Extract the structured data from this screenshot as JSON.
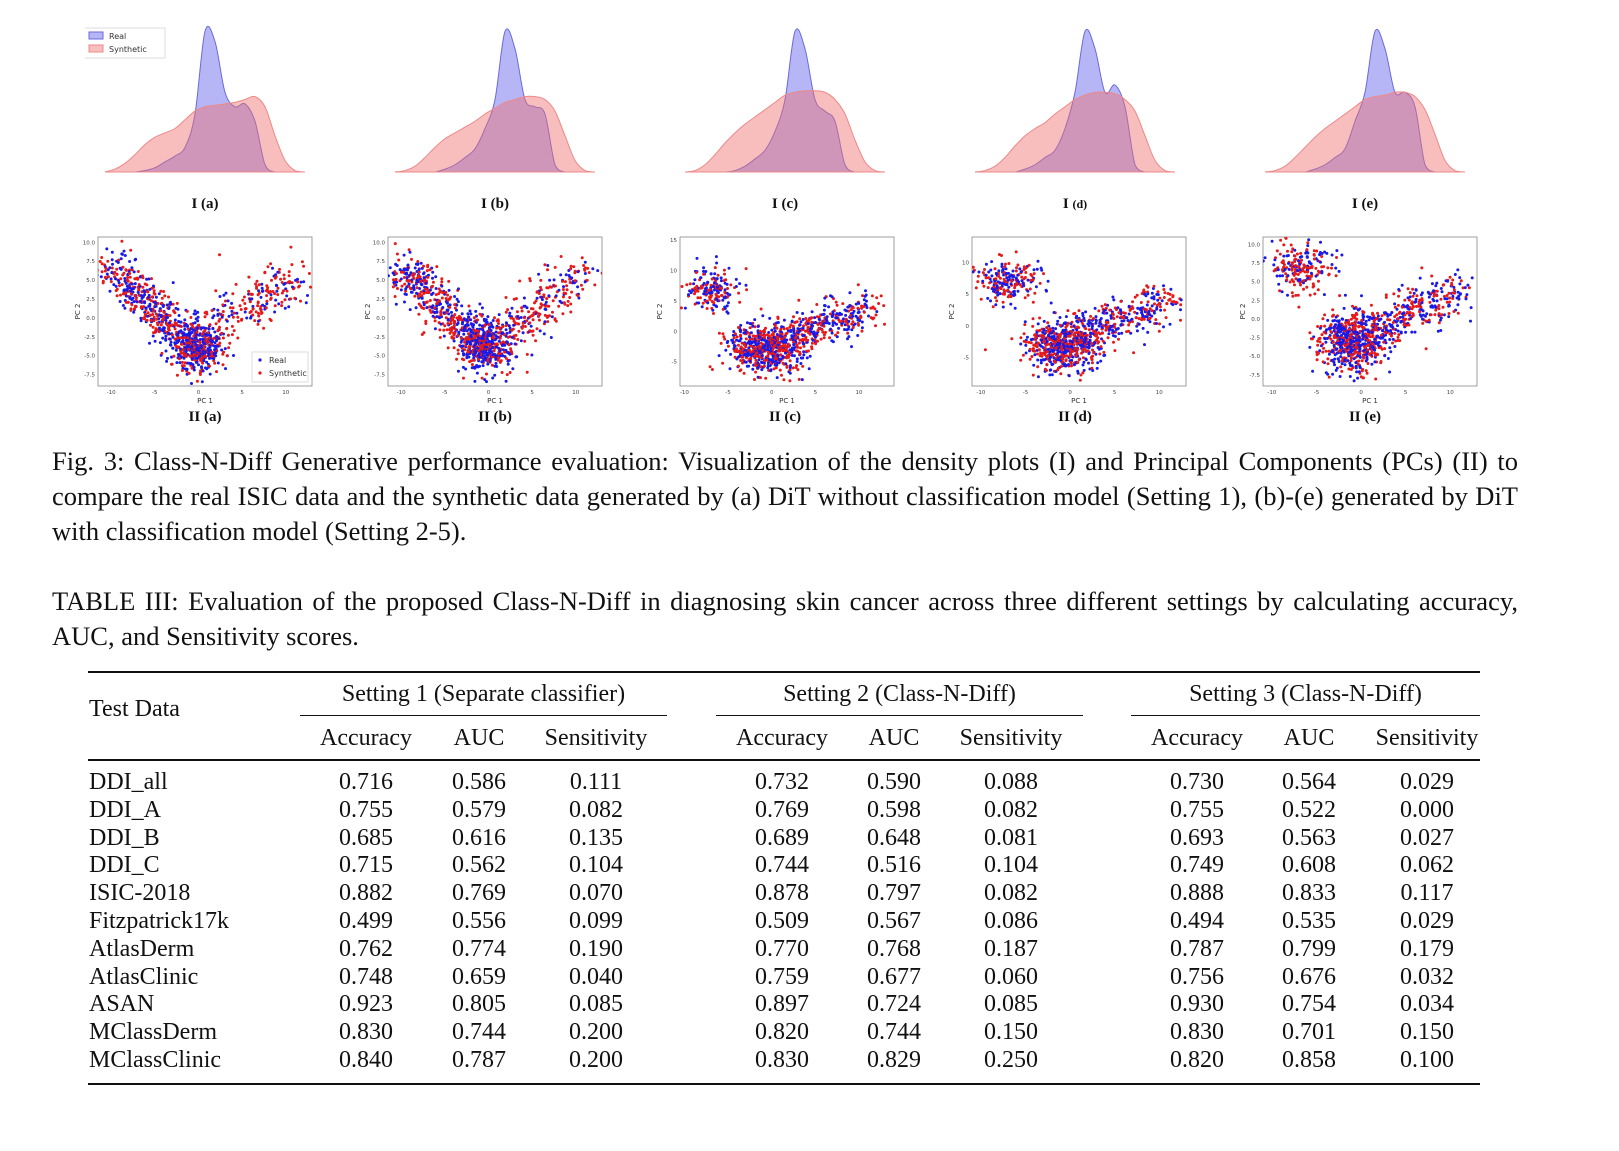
{
  "chart_data": [
    {
      "type": "area",
      "group": "I",
      "legend": [
        "Real",
        "Synthetic"
      ],
      "legend_placement": "top-left",
      "colors": {
        "Real": "#8c8cf0",
        "Synthetic": "#f4a0a0"
      },
      "panels": [
        {
          "label_main": "I",
          "label_sub": "(a)",
          "real": [
            0,
            0,
            0,
            0,
            0.01,
            0.03,
            0.07,
            0.11,
            0.17,
            0.4,
            0.97,
            0.9,
            0.55,
            0.45,
            0.47,
            0.35,
            0.05,
            0,
            0,
            0,
            0
          ],
          "synthetic": [
            0,
            0.02,
            0.06,
            0.12,
            0.19,
            0.24,
            0.27,
            0.3,
            0.36,
            0.42,
            0.45,
            0.46,
            0.47,
            0.48,
            0.5,
            0.52,
            0.45,
            0.25,
            0.08,
            0.01,
            0
          ]
        },
        {
          "label_main": "I",
          "label_sub": "(b)",
          "real": [
            0,
            0,
            0,
            0,
            0,
            0.02,
            0.05,
            0.1,
            0.16,
            0.3,
            0.5,
            0.97,
            0.85,
            0.5,
            0.45,
            0.4,
            0.05,
            0,
            0,
            0,
            0
          ],
          "synthetic": [
            0,
            0.01,
            0.04,
            0.1,
            0.17,
            0.23,
            0.27,
            0.31,
            0.35,
            0.4,
            0.44,
            0.48,
            0.5,
            0.52,
            0.52,
            0.5,
            0.42,
            0.25,
            0.08,
            0.01,
            0
          ]
        },
        {
          "label_main": "I",
          "label_sub": "(c)",
          "real": [
            0,
            0,
            0,
            0,
            0,
            0.01,
            0.04,
            0.09,
            0.15,
            0.28,
            0.5,
            0.97,
            0.85,
            0.5,
            0.42,
            0.35,
            0.05,
            0,
            0,
            0,
            0
          ],
          "synthetic": [
            0,
            0.01,
            0.05,
            0.12,
            0.2,
            0.27,
            0.33,
            0.38,
            0.43,
            0.48,
            0.53,
            0.55,
            0.56,
            0.56,
            0.55,
            0.5,
            0.4,
            0.22,
            0.07,
            0.01,
            0
          ]
        },
        {
          "label_main": "I",
          "label_sub": "(d)",
          "real": [
            0,
            0,
            0,
            0,
            0,
            0.02,
            0.05,
            0.1,
            0.15,
            0.3,
            0.55,
            0.97,
            0.85,
            0.55,
            0.6,
            0.45,
            0.05,
            0,
            0,
            0,
            0
          ],
          "synthetic": [
            0,
            0.01,
            0.04,
            0.1,
            0.18,
            0.25,
            0.3,
            0.34,
            0.4,
            0.45,
            0.5,
            0.53,
            0.55,
            0.55,
            0.54,
            0.5,
            0.42,
            0.25,
            0.08,
            0.01,
            0
          ]
        },
        {
          "label_main": "I",
          "label_sub": "(e)",
          "real": [
            0,
            0,
            0,
            0,
            0,
            0.02,
            0.05,
            0.1,
            0.16,
            0.35,
            0.55,
            0.97,
            0.85,
            0.55,
            0.55,
            0.45,
            0.05,
            0,
            0,
            0,
            0
          ],
          "synthetic": [
            0,
            0.01,
            0.04,
            0.1,
            0.17,
            0.24,
            0.3,
            0.35,
            0.4,
            0.45,
            0.5,
            0.52,
            0.53,
            0.55,
            0.55,
            0.52,
            0.43,
            0.26,
            0.08,
            0.01,
            0
          ]
        }
      ]
    },
    {
      "type": "scatter",
      "group": "II",
      "xlabel": "PC 1",
      "ylabel": "PC 2",
      "legend": [
        "Real",
        "Synthetic"
      ],
      "legend_placement": "bottom-right",
      "colors": {
        "Real": "#1a1ae6",
        "Synthetic": "#e61a1a"
      },
      "panels": [
        {
          "label_main": "II",
          "label_sub": "(a)",
          "shape": "v",
          "xlim": [
            -11.5,
            13
          ],
          "ylim": [
            -9,
            10.7
          ],
          "xticks": [
            "-10",
            "-5",
            "0",
            "5",
            "10"
          ],
          "xtick_values": [
            -10,
            -5,
            0,
            5,
            10
          ],
          "yticks": [
            "-7.5",
            "-5.0",
            "-2.5",
            "0.0",
            "2.5",
            "5.0",
            "7.5",
            "10.0"
          ],
          "ytick_values": [
            -7.5,
            -5,
            -2.5,
            0,
            2.5,
            5,
            7.5,
            10
          ],
          "show_legend": true
        },
        {
          "label_main": "II",
          "label_sub": "(b)",
          "shape": "v",
          "xlim": [
            -11.5,
            13
          ],
          "ylim": [
            -9,
            10.7
          ],
          "xticks": [
            "-10",
            "-5",
            "0",
            "5",
            "10"
          ],
          "xtick_values": [
            -10,
            -5,
            0,
            5,
            10
          ],
          "yticks": [
            "-7.5",
            "-5.0",
            "-2.5",
            "0.0",
            "2.5",
            "5.0",
            "7.5",
            "10.0"
          ],
          "ytick_values": [
            -7.5,
            -5,
            -2.5,
            0,
            2.5,
            5,
            7.5,
            10
          ],
          "show_legend": false
        },
        {
          "label_main": "II",
          "label_sub": "(c)",
          "shape": "blob",
          "xlim": [
            -10.5,
            14
          ],
          "ylim": [
            -9,
            15.5
          ],
          "xticks": [
            "-10",
            "-5",
            "0",
            "5",
            "10"
          ],
          "xtick_values": [
            -10,
            -5,
            0,
            5,
            10
          ],
          "yticks": [
            "-5",
            "0",
            "5",
            "10",
            "15"
          ],
          "ytick_values": [
            -5,
            0,
            5,
            10,
            15
          ],
          "show_legend": false
        },
        {
          "label_main": "II",
          "label_sub": "(d)",
          "shape": "blob",
          "xlim": [
            -11,
            13
          ],
          "ylim": [
            -9.5,
            14
          ],
          "xticks": [
            "-10",
            "-5",
            "0",
            "5",
            "10"
          ],
          "xtick_values": [
            -10,
            -5,
            0,
            5,
            10
          ],
          "yticks": [
            "-5",
            "0",
            "5",
            "10"
          ],
          "ytick_values": [
            -5,
            0,
            5,
            10
          ],
          "show_legend": false
        },
        {
          "label_main": "II",
          "label_sub": "(e)",
          "shape": "blob",
          "xlim": [
            -11,
            13
          ],
          "ylim": [
            -9,
            11
          ],
          "xticks": [
            "-10",
            "-5",
            "0",
            "5",
            "10"
          ],
          "xtick_values": [
            -10,
            -5,
            0,
            5,
            10
          ],
          "yticks": [
            "-7.5",
            "-5.0",
            "-2.5",
            "0.0",
            "2.5",
            "5.0",
            "7.5",
            "10.0"
          ],
          "ytick_values": [
            -7.5,
            -5,
            -2.5,
            0,
            2.5,
            5,
            7.5,
            10
          ],
          "show_legend": false
        }
      ]
    }
  ],
  "figure_caption": "Fig. 3: Class-N-Diff Generative performance evaluation: Visualization of the density plots (I) and Principal Components (PCs) (II) to compare the real ISIC data and the synthetic data generated by (a) DiT without classification model (Setting 1), (b)-(e) generated by DiT with classification model (Setting 2-5).",
  "table_caption": "TABLE III: Evaluation of the proposed Class-N-Diff in diagnosing skin cancer across three different settings by calculating accuracy, AUC, and Sensitivity scores.",
  "table": {
    "first_header": "Test Data",
    "groups": [
      "Setting 1 (Separate classifier)",
      "Setting 2 (Class-N-Diff)",
      "Setting 3 (Class-N-Diff)"
    ],
    "subheaders": [
      "Accuracy",
      "AUC",
      "Sensitivity"
    ],
    "rows": [
      {
        "name": "DDI_all",
        "values": [
          "0.716",
          "0.586",
          "0.111",
          "0.732",
          "0.590",
          "0.088",
          "0.730",
          "0.564",
          "0.029"
        ]
      },
      {
        "name": "DDI_A",
        "values": [
          "0.755",
          "0.579",
          "0.082",
          "0.769",
          "0.598",
          "0.082",
          "0.755",
          "0.522",
          "0.000"
        ]
      },
      {
        "name": "DDI_B",
        "values": [
          "0.685",
          "0.616",
          "0.135",
          "0.689",
          "0.648",
          "0.081",
          "0.693",
          "0.563",
          "0.027"
        ]
      },
      {
        "name": "DDI_C",
        "values": [
          "0.715",
          "0.562",
          "0.104",
          "0.744",
          "0.516",
          "0.104",
          "0.749",
          "0.608",
          "0.062"
        ]
      },
      {
        "name": "ISIC-2018",
        "values": [
          "0.882",
          "0.769",
          "0.070",
          "0.878",
          "0.797",
          "0.082",
          "0.888",
          "0.833",
          "0.117"
        ]
      },
      {
        "name": "Fitzpatrick17k",
        "values": [
          "0.499",
          "0.556",
          "0.099",
          "0.509",
          "0.567",
          "0.086",
          "0.494",
          "0.535",
          "0.029"
        ]
      },
      {
        "name": "AtlasDerm",
        "values": [
          "0.762",
          "0.774",
          "0.190",
          "0.770",
          "0.768",
          "0.187",
          "0.787",
          "0.799",
          "0.179"
        ]
      },
      {
        "name": "AtlasClinic",
        "values": [
          "0.748",
          "0.659",
          "0.040",
          "0.759",
          "0.677",
          "0.060",
          "0.756",
          "0.676",
          "0.032"
        ]
      },
      {
        "name": "ASAN",
        "values": [
          "0.923",
          "0.805",
          "0.085",
          "0.897",
          "0.724",
          "0.085",
          "0.930",
          "0.754",
          "0.034"
        ]
      },
      {
        "name": "MClassDerm",
        "values": [
          "0.830",
          "0.744",
          "0.200",
          "0.820",
          "0.744",
          "0.150",
          "0.830",
          "0.701",
          "0.150"
        ]
      },
      {
        "name": "MClassClinic",
        "values": [
          "0.840",
          "0.787",
          "0.200",
          "0.830",
          "0.829",
          "0.250",
          "0.820",
          "0.858",
          "0.100"
        ]
      }
    ]
  }
}
